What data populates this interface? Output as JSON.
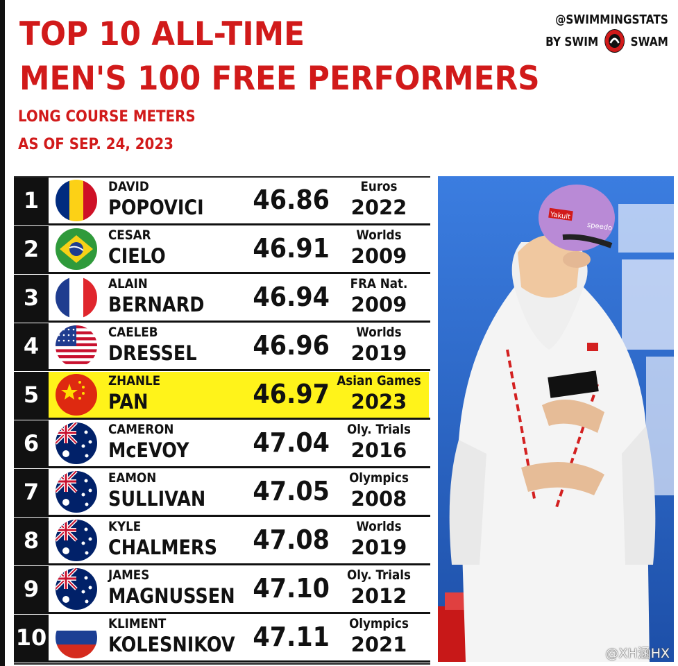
{
  "header": {
    "title_line1": "TOP 10 ALL-TIME",
    "title_line2": "MEN'S 100 FREE PERFORMERS",
    "subtitle_line1": "LONG COURSE METERS",
    "subtitle_line2": "AS OF SEP. 24, 2023"
  },
  "brand": {
    "handle": "@SWIMMINGSTATS",
    "by": "BY SWIM",
    "swam": "SWAM"
  },
  "colors": {
    "title": "#d11a1a",
    "highlight": "#fff31a",
    "rank_bg": "#111111"
  },
  "rankings": [
    {
      "rank": "1",
      "first": "DAVID",
      "last": "POPOVICI",
      "time": "46.86",
      "meet": "Euros",
      "year": "2022",
      "flag": "romania-flag"
    },
    {
      "rank": "2",
      "first": "CESAR",
      "last": "CIELO",
      "time": "46.91",
      "meet": "Worlds",
      "year": "2009",
      "flag": "brazil-flag"
    },
    {
      "rank": "3",
      "first": "ALAIN",
      "last": "BERNARD",
      "time": "46.94",
      "meet": "FRA Nat.",
      "year": "2009",
      "flag": "france-flag"
    },
    {
      "rank": "4",
      "first": "CAELEB",
      "last": "DRESSEL",
      "time": "46.96",
      "meet": "Worlds",
      "year": "2019",
      "flag": "usa-flag"
    },
    {
      "rank": "5",
      "first": "ZHANLE",
      "last": "PAN",
      "time": "46.97",
      "meet": "Asian Games",
      "year": "2023",
      "flag": "china-flag",
      "highlight": true
    },
    {
      "rank": "6",
      "first": "CAMERON",
      "last": "McEVOY",
      "time": "47.04",
      "meet": "Oly. Trials",
      "year": "2016",
      "flag": "australia-flag"
    },
    {
      "rank": "7",
      "first": "EAMON",
      "last": "SULLIVAN",
      "time": "47.05",
      "meet": "Olympics",
      "year": "2008",
      "flag": "australia-flag"
    },
    {
      "rank": "8",
      "first": "KYLE",
      "last": "CHALMERS",
      "time": "47.08",
      "meet": "Worlds",
      "year": "2019",
      "flag": "australia-flag"
    },
    {
      "rank": "9",
      "first": "JAMES",
      "last": "MAGNUSSEN",
      "time": "47.10",
      "meet": "Oly. Trials",
      "year": "2012",
      "flag": "australia-flag"
    },
    {
      "rank": "10",
      "first": "KLIMENT",
      "last": "KOLESNIKOV",
      "time": "47.11",
      "meet": "Olympics",
      "year": "2021",
      "flag": "russia-flag"
    }
  ],
  "photo": {
    "cap_logo": "Yakult",
    "cap_brand": "speedo"
  },
  "watermark": "@XH涵HX"
}
